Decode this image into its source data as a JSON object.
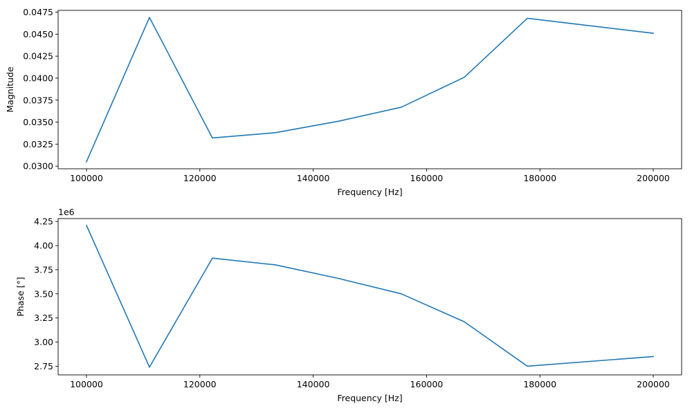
{
  "colors": {
    "series": "#1f77b4",
    "axes": "#000000",
    "background": "#ffffff"
  },
  "chart_data": [
    {
      "type": "line",
      "xlabel": "Frequency [Hz]",
      "ylabel": "Magnitude",
      "xlim": [
        95000,
        205000
      ],
      "ylim": [
        0.0297,
        0.0477
      ],
      "grid": false,
      "xticks": [
        100000,
        120000,
        140000,
        160000,
        180000,
        200000
      ],
      "xtick_labels": [
        "100000",
        "120000",
        "140000",
        "160000",
        "180000",
        "200000"
      ],
      "yticks": [
        0.03,
        0.0325,
        0.035,
        0.0375,
        0.04,
        0.0425,
        0.045,
        0.0475
      ],
      "ytick_labels": [
        "0.0300",
        "0.0325",
        "0.0350",
        "0.0375",
        "0.0400",
        "0.0425",
        "0.0450",
        "0.0475"
      ],
      "offset_label": "",
      "series": [
        {
          "x": [
            100000,
            111111,
            122222,
            133333,
            144444,
            155556,
            166667,
            177778,
            200000
          ],
          "values": [
            0.0305,
            0.0469,
            0.0332,
            0.0338,
            0.0351,
            0.0367,
            0.0401,
            0.0468,
            0.0451
          ]
        }
      ]
    },
    {
      "type": "line",
      "xlabel": "Frequency [Hz]",
      "ylabel": "Phase [°]",
      "xlim": [
        95000,
        205000
      ],
      "ylim": [
        2.66,
        4.28
      ],
      "grid": false,
      "xticks": [
        100000,
        120000,
        140000,
        160000,
        180000,
        200000
      ],
      "xtick_labels": [
        "100000",
        "120000",
        "140000",
        "160000",
        "180000",
        "200000"
      ],
      "yticks": [
        2.75,
        3.0,
        3.25,
        3.5,
        3.75,
        4.0,
        4.25
      ],
      "ytick_labels": [
        "2.75",
        "3.00",
        "3.25",
        "3.50",
        "3.75",
        "4.00",
        "4.25"
      ],
      "offset_label": "1e6",
      "series": [
        {
          "x": [
            100000,
            111111,
            122222,
            133333,
            144444,
            155556,
            166667,
            177778,
            200000
          ],
          "values": [
            4.21,
            2.74,
            3.87,
            3.8,
            3.66,
            3.5,
            3.21,
            2.75,
            2.85
          ]
        }
      ]
    }
  ]
}
